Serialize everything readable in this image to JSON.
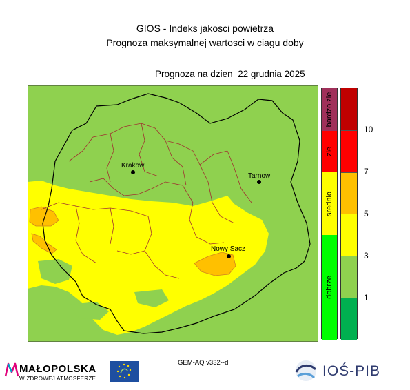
{
  "title_line1": "GIOS - Indeks jakosci powietrza",
  "title_line2": "Prognoza maksymalnej wartosci w ciagu doby",
  "forecast_label": "Prognoza na dzien  22 grudnia 2025",
  "cities": [
    {
      "name": "Krakow"
    },
    {
      "name": "Tarnow"
    },
    {
      "name": "Nowy Sacz"
    }
  ],
  "quality_classes": [
    {
      "label": "bardzo zle",
      "color": "#a0305a"
    },
    {
      "label": "zle",
      "color": "#ff0000"
    },
    {
      "label": "srednio",
      "color": "#ffff00"
    },
    {
      "label": "dobrze",
      "color": "#00ff00"
    }
  ],
  "scale_colors": [
    "#c00000",
    "#ff0000",
    "#ffc000",
    "#ffff00",
    "#8fd14f",
    "#00b050"
  ],
  "scale_ticks": [
    "10",
    "7",
    "5",
    "3",
    "1"
  ],
  "model_label": "GEM-AQ v332--d",
  "logos": {
    "malopolska_name": "MAŁOPOLSKA",
    "malopolska_sub": "W ZDROWEJ ATMOSFERZE",
    "ios_name": "IOŚ-PIB"
  }
}
